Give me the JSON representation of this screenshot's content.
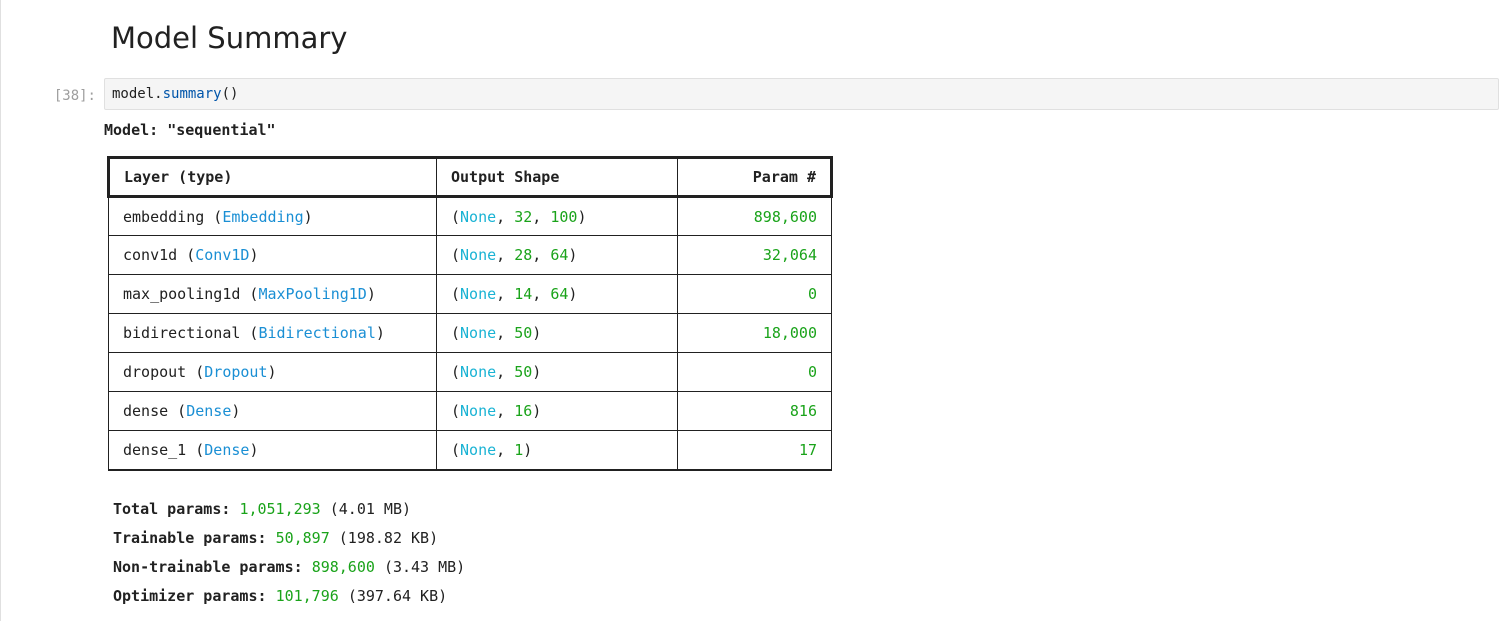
{
  "heading": "Model Summary",
  "cell": {
    "prompt": "[38]:",
    "code_var": "model",
    "code_dot": ".",
    "code_fn": "summary",
    "code_parens": "()"
  },
  "model_title": "Model: \"sequential\"",
  "table": {
    "headers": [
      "Layer (type)",
      "Output Shape",
      "Param #"
    ],
    "rows": [
      {
        "name": "embedding",
        "cls": "Embedding",
        "shape": [
          "None",
          "32",
          "100"
        ],
        "params": "898,600"
      },
      {
        "name": "conv1d",
        "cls": "Conv1D",
        "shape": [
          "None",
          "28",
          "64"
        ],
        "params": "32,064"
      },
      {
        "name": "max_pooling1d",
        "cls": "MaxPooling1D",
        "shape": [
          "None",
          "14",
          "64"
        ],
        "params": "0"
      },
      {
        "name": "bidirectional",
        "cls": "Bidirectional",
        "shape": [
          "None",
          "50"
        ],
        "params": "18,000"
      },
      {
        "name": "dropout",
        "cls": "Dropout",
        "shape": [
          "None",
          "50"
        ],
        "params": "0"
      },
      {
        "name": "dense",
        "cls": "Dense",
        "shape": [
          "None",
          "16"
        ],
        "params": "816"
      },
      {
        "name": "dense_1",
        "cls": "Dense",
        "shape": [
          "None",
          "1"
        ],
        "params": "17"
      }
    ]
  },
  "totals": [
    {
      "label": "Total params:",
      "value": "1,051,293",
      "size": "(4.01 MB)"
    },
    {
      "label": "Trainable params:",
      "value": "50,897",
      "size": "(198.82 KB)"
    },
    {
      "label": "Non-trainable params:",
      "value": "898,600",
      "size": "(3.43 MB)"
    },
    {
      "label": "Optimizer params:",
      "value": "101,796",
      "size": "(397.64 KB)"
    }
  ],
  "colors": {
    "class_name": "#1a8fd4",
    "none_keyword": "#1ab3d4",
    "number": "#1aa31a",
    "code_fn": "#0055aa"
  }
}
